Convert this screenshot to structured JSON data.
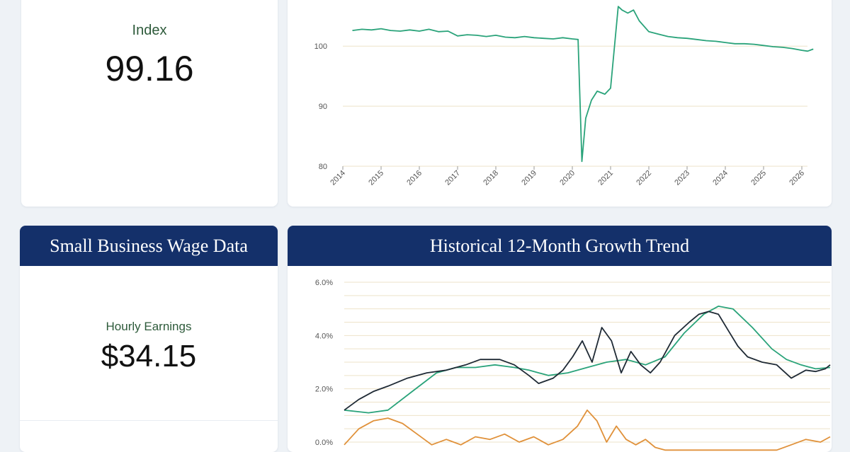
{
  "index_panel": {
    "label": "Index",
    "value": "99.16"
  },
  "wage_panel": {
    "header": "Small Business Wage Data",
    "label": "Hourly Earnings",
    "value": "$34.15"
  },
  "growth_panel": {
    "header": "Historical 12-Month Growth Trend"
  },
  "colors": {
    "navy": "#14306a",
    "green": "#2aa37a",
    "black": "#1f2a35",
    "orange": "#e0913a",
    "grid": "#eee3c9"
  },
  "chart_data": [
    {
      "type": "line",
      "title": "",
      "xlabel": "",
      "ylabel": "",
      "x_tick_labels": [
        "2014",
        "2015",
        "2016",
        "2017",
        "2018",
        "2019",
        "2020",
        "2021",
        "2022",
        "2023",
        "2024",
        "2025",
        "2026"
      ],
      "y_tick_labels": [
        "80",
        "90",
        "100"
      ],
      "xlim": [
        2014.25,
        2026.3
      ],
      "ylim": [
        80,
        106.5
      ],
      "grid": true,
      "series": [
        {
          "color": "#2aa37a",
          "x": [
            2014.25,
            2014.5,
            2014.75,
            2015.0,
            2015.25,
            2015.5,
            2015.75,
            2016.0,
            2016.25,
            2016.5,
            2016.75,
            2017.0,
            2017.25,
            2017.5,
            2017.75,
            2018.0,
            2018.25,
            2018.5,
            2018.75,
            2019.0,
            2019.25,
            2019.5,
            2019.75,
            2020.0,
            2020.15,
            2020.25,
            2020.35,
            2020.5,
            2020.65,
            2020.85,
            2021.0,
            2021.2,
            2021.3,
            2021.45,
            2021.6,
            2021.75,
            2022.0,
            2022.25,
            2022.5,
            2022.75,
            2023.0,
            2023.25,
            2023.5,
            2023.75,
            2024.0,
            2024.25,
            2024.5,
            2024.75,
            2025.0,
            2025.25,
            2025.5,
            2025.75,
            2026.0,
            2026.15,
            2026.3
          ],
          "y": [
            102.6,
            102.8,
            102.7,
            102.9,
            102.6,
            102.5,
            102.7,
            102.5,
            102.8,
            102.4,
            102.5,
            101.7,
            101.9,
            101.8,
            101.6,
            101.8,
            101.5,
            101.4,
            101.6,
            101.4,
            101.3,
            101.2,
            101.4,
            101.2,
            101.1,
            80.8,
            88,
            91,
            92.5,
            92,
            93,
            106.6,
            106,
            105.5,
            106,
            104.2,
            102.4,
            102.0,
            101.6,
            101.4,
            101.3,
            101.1,
            100.9,
            100.8,
            100.6,
            100.4,
            100.4,
            100.3,
            100.1,
            99.9,
            99.8,
            99.6,
            99.3,
            99.16,
            99.5
          ]
        }
      ]
    },
    {
      "type": "line",
      "title": "",
      "xlabel": "",
      "ylabel": "",
      "y_tick_labels": [
        "0.0%",
        "2.0%",
        "4.0%",
        "6.0%"
      ],
      "xlim": [
        0,
        100
      ],
      "ylim": [
        0,
        6
      ],
      "grid": true,
      "series": [
        {
          "color": "#2aa37a",
          "x": [
            0,
            5,
            9,
            14,
            19,
            23,
            27,
            31,
            35,
            38,
            42,
            46,
            50,
            54,
            58,
            62,
            66,
            70,
            74,
            77,
            80,
            84,
            88,
            91,
            94,
            97,
            100
          ],
          "y": [
            1.2,
            1.1,
            1.2,
            1.9,
            2.6,
            2.8,
            2.8,
            2.9,
            2.8,
            2.7,
            2.5,
            2.6,
            2.8,
            3.0,
            3.1,
            2.9,
            3.2,
            4.1,
            4.8,
            5.1,
            5.0,
            4.3,
            3.5,
            3.1,
            2.9,
            2.75,
            2.8
          ]
        },
        {
          "color": "#1f2a35",
          "x": [
            0,
            3,
            6,
            9,
            13,
            17,
            21,
            25,
            28,
            32,
            35,
            38,
            40,
            43,
            45,
            47,
            49,
            51,
            53,
            55,
            57,
            59,
            61,
            63,
            65,
            68,
            71,
            73,
            75,
            77,
            79,
            81,
            83,
            86,
            89,
            92,
            95,
            97,
            99,
            100
          ],
          "y": [
            1.2,
            1.6,
            1.9,
            2.1,
            2.4,
            2.6,
            2.7,
            2.9,
            3.1,
            3.1,
            2.9,
            2.5,
            2.2,
            2.4,
            2.7,
            3.2,
            3.8,
            3.0,
            4.3,
            3.8,
            2.6,
            3.4,
            2.9,
            2.6,
            3.0,
            4.0,
            4.5,
            4.8,
            4.9,
            4.8,
            4.2,
            3.6,
            3.2,
            3.0,
            2.9,
            2.4,
            2.7,
            2.65,
            2.75,
            2.9
          ]
        },
        {
          "color": "#e0913a",
          "x": [
            0,
            3,
            6,
            9,
            12,
            15,
            18,
            21,
            24,
            27,
            30,
            33,
            36,
            39,
            42,
            45,
            48,
            50,
            52,
            54,
            56,
            58,
            60,
            62,
            64,
            66,
            68,
            71,
            74,
            77,
            80,
            83,
            86,
            89,
            92,
            95,
            98,
            100
          ],
          "y": [
            -0.1,
            0.5,
            0.8,
            0.9,
            0.7,
            0.3,
            -0.1,
            0.1,
            -0.1,
            0.2,
            0.1,
            0.3,
            0.0,
            0.2,
            -0.1,
            0.1,
            0.6,
            1.2,
            0.8,
            0.0,
            0.6,
            0.1,
            -0.1,
            0.1,
            -0.2,
            -0.3,
            -0.3,
            -0.3,
            -0.3,
            -0.3,
            -0.3,
            -0.3,
            -0.3,
            -0.3,
            -0.1,
            0.1,
            0.0,
            0.2
          ]
        }
      ]
    }
  ]
}
